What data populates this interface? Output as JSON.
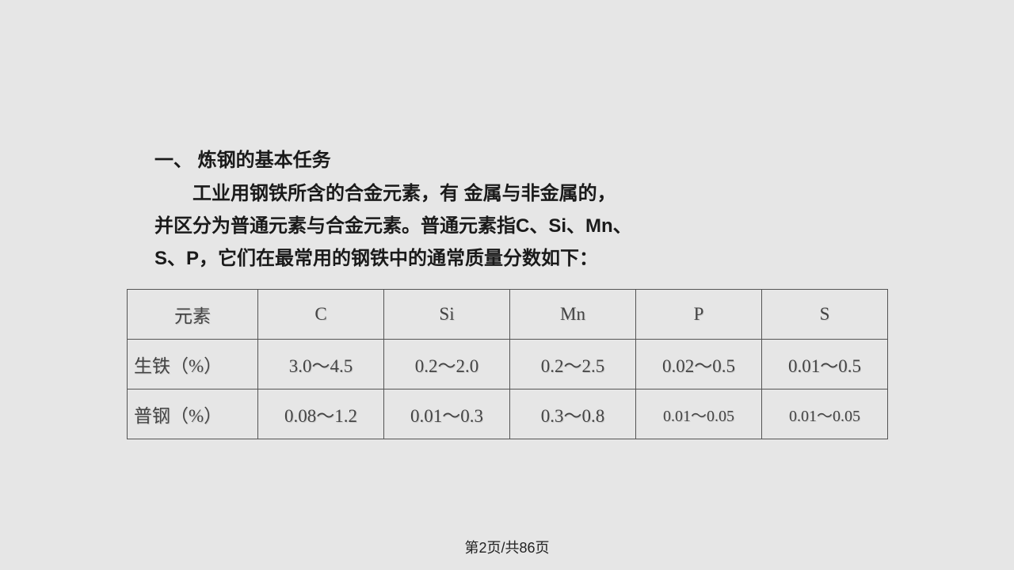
{
  "heading": "一、 炼钢的基本任务",
  "para_line1": "工业用钢铁所含的合金元素，有 金属与非金属的，",
  "para_line2": "并区分为普通元素与合金元素。普通元素指C、Si、Mn、",
  "para_line3": "S、P，它们在最常用的钢铁中的通常质量分数如下：",
  "table": {
    "header": [
      "元素",
      "C",
      "Si",
      "Mn",
      "P",
      "S"
    ],
    "rows": [
      {
        "label": "生铁（%）",
        "cells": [
          "3.0～4.5",
          "0.2～2.0",
          "0.2～2.5",
          "0.02～0.5",
          "0.01～0.5"
        ],
        "small": [
          false,
          false,
          false,
          false,
          false
        ]
      },
      {
        "label": "普钢（%）",
        "cells": [
          "0.08～1.2",
          "0.01～0.3",
          "0.3～0.8",
          "0.01～0.05",
          "0.01～0.05"
        ],
        "small": [
          false,
          false,
          false,
          true,
          true
        ]
      }
    ]
  },
  "pagenum": "第2页/共86页",
  "colors": {
    "background": "#e6e6e6",
    "text": "#1a1a1a",
    "cell_text": "#444444",
    "border": "#555555"
  }
}
